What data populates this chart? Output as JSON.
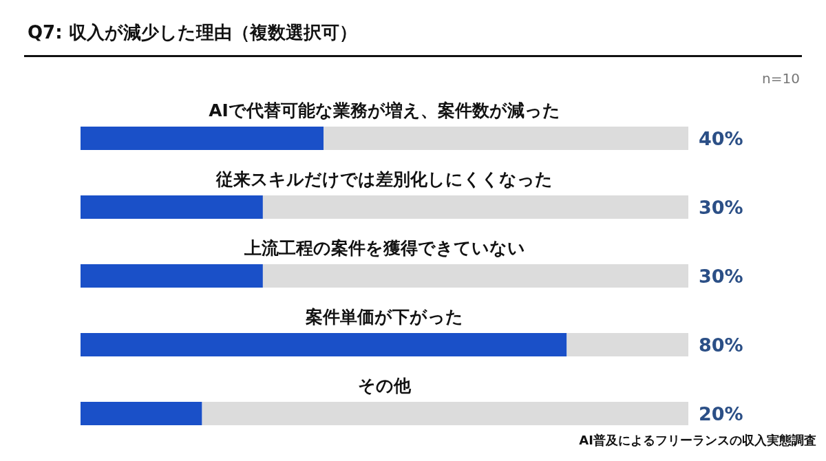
{
  "chart_data": {
    "type": "bar",
    "orientation": "horizontal",
    "stacked": true,
    "title": "Q7: 収入が減少した理由（複数選択可）",
    "annotations": [
      "n=10",
      "AI普及によるフリーランスの収入実態調査"
    ],
    "categories": [
      "AIで代替可能な業務が増え、案件数が減った",
      "従来スキルだけでは差別化しにくくなった",
      "上流工程の案件を獲得できていない",
      "案件単価が下がった",
      "その他"
    ],
    "xlim": [
      0,
      100
    ],
    "series": [
      {
        "color": "#1a50c8",
        "values": [
          40,
          30,
          30,
          80,
          20
        ],
        "value_labels": [
          "40%",
          "30%",
          "30%",
          "80%",
          "20%"
        ]
      },
      {
        "color": "#dcdcdc",
        "values": [
          60,
          70,
          70,
          20,
          80
        ]
      }
    ]
  }
}
